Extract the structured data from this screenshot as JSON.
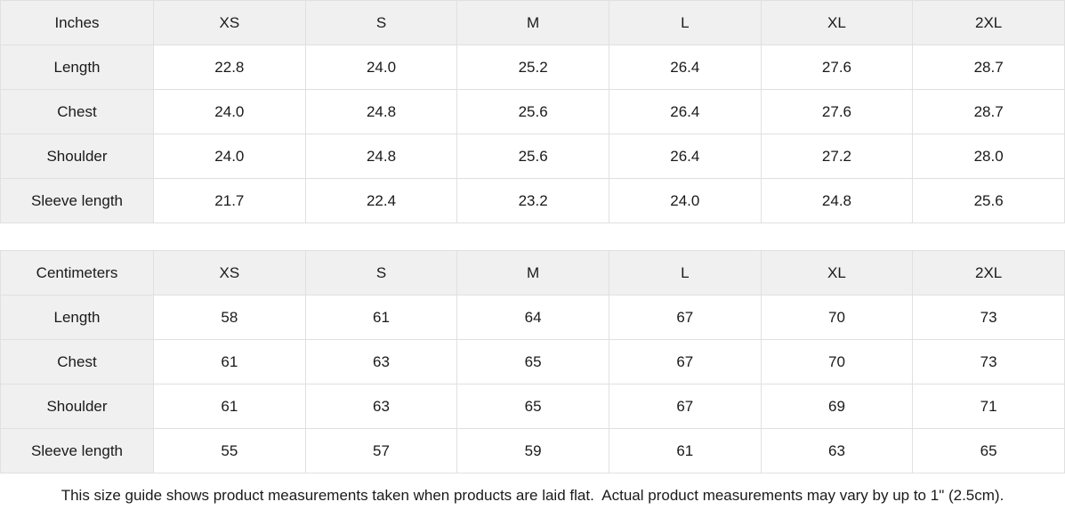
{
  "tables": [
    {
      "unit_header": "Inches",
      "sizes": [
        "XS",
        "S",
        "M",
        "L",
        "XL",
        "2XL"
      ],
      "rows": [
        {
          "label": "Length",
          "values": [
            "22.8",
            "24.0",
            "25.2",
            "26.4",
            "27.6",
            "28.7"
          ]
        },
        {
          "label": "Chest",
          "values": [
            "24.0",
            "24.8",
            "25.6",
            "26.4",
            "27.6",
            "28.7"
          ]
        },
        {
          "label": "Shoulder",
          "values": [
            "24.0",
            "24.8",
            "25.6",
            "26.4",
            "27.2",
            "28.0"
          ]
        },
        {
          "label": "Sleeve length",
          "values": [
            "21.7",
            "22.4",
            "23.2",
            "24.0",
            "24.8",
            "25.6"
          ]
        }
      ]
    },
    {
      "unit_header": "Centimeters",
      "sizes": [
        "XS",
        "S",
        "M",
        "L",
        "XL",
        "2XL"
      ],
      "rows": [
        {
          "label": "Length",
          "values": [
            "58",
            "61",
            "64",
            "67",
            "70",
            "73"
          ]
        },
        {
          "label": "Chest",
          "values": [
            "61",
            "63",
            "65",
            "67",
            "70",
            "73"
          ]
        },
        {
          "label": "Shoulder",
          "values": [
            "61",
            "63",
            "65",
            "67",
            "69",
            "71"
          ]
        },
        {
          "label": "Sleeve length",
          "values": [
            "55",
            "57",
            "59",
            "61",
            "63",
            "65"
          ]
        }
      ]
    }
  ],
  "footer": {
    "note": "This size guide shows product measurements taken when products are laid flat.  Actual product measurements may vary by up to 1\" (2.5cm)."
  },
  "colors": {
    "header_background": "#f0f0f0",
    "cell_background": "#ffffff",
    "border": "#e0e0e0",
    "text": "#1a1a1a"
  }
}
